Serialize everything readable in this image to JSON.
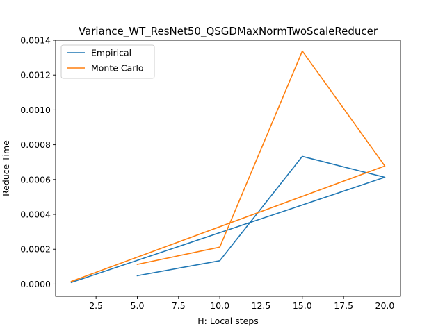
{
  "chart_data": {
    "type": "line",
    "title": "Variance_WT_ResNet50_QSGDMaxNormTwoScaleReducer",
    "xlabel": "H: Local steps",
    "ylabel": "Reduce Time",
    "xlim": [
      0.05,
      20.95
    ],
    "ylim": [
      -7e-05,
      0.0014
    ],
    "xticks": [
      2.5,
      5.0,
      7.5,
      10.0,
      12.5,
      15.0,
      17.5,
      20.0
    ],
    "xtick_labels": [
      "2.5",
      "5.0",
      "7.5",
      "10.0",
      "12.5",
      "15.0",
      "17.5",
      "20.0"
    ],
    "yticks": [
      0,
      0.0002,
      0.0004,
      0.0006,
      0.0008,
      0.001,
      0.0012,
      0.0014
    ],
    "ytick_labels": [
      "0.0000",
      "0.0002",
      "0.0004",
      "0.0006",
      "0.0008",
      "0.0010",
      "0.0012",
      "0.0014"
    ],
    "grid": false,
    "legend": "top-left",
    "series": [
      {
        "name": "Empirical",
        "color": "#1f77b4",
        "x": [
          1,
          20,
          15,
          10,
          5
        ],
        "y": [
          9e-06,
          0.000613,
          0.000733,
          0.000134,
          4.8e-05
        ]
      },
      {
        "name": "Monte Carlo",
        "color": "#ff7f0e",
        "x": [
          1,
          20,
          15,
          10,
          5
        ],
        "y": [
          1.5e-05,
          0.000678,
          0.001338,
          0.000212,
          0.000113
        ]
      }
    ]
  }
}
